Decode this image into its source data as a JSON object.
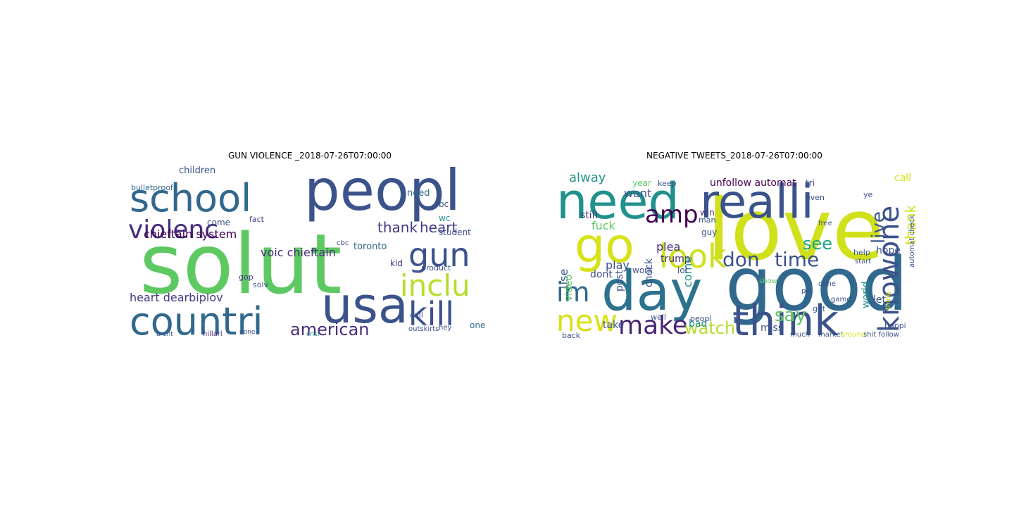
{
  "figure": {
    "left_title": "GUN VIOLENCE _2018-07-26T07:00:00",
    "right_title": "NEGATIVE TWEETS_2018-07-26T07:00:00"
  },
  "left_words": [
    {
      "t": "solut",
      "c": "#5ec962"
    },
    {
      "t": "peopl",
      "c": "#3b528b"
    },
    {
      "t": "school",
      "c": "#31688e"
    },
    {
      "t": "countri",
      "c": "#31688e"
    },
    {
      "t": "usa",
      "c": "#3b528b"
    },
    {
      "t": "violenc",
      "c": "#472d7b"
    },
    {
      "t": "gun",
      "c": "#3b528b"
    },
    {
      "t": "inclu",
      "c": "#b5de2b"
    },
    {
      "t": "kill",
      "c": "#3b528b"
    },
    {
      "t": "american",
      "c": "#472d7b"
    },
    {
      "t": "thank",
      "c": "#443983"
    },
    {
      "t": "heart",
      "c": "#443983"
    },
    {
      "t": "chieftain system",
      "c": "#440154"
    },
    {
      "t": "voic chieftain",
      "c": "#472d7b"
    },
    {
      "t": "heart dearbiplov",
      "c": "#443983"
    },
    {
      "t": "toronto",
      "c": "#31688e"
    },
    {
      "t": "student",
      "c": "#3b528b"
    },
    {
      "t": "children",
      "c": "#3b528b"
    },
    {
      "t": "bulletproof",
      "c": "#31688e"
    },
    {
      "t": "fact",
      "c": "#443983"
    },
    {
      "t": "need",
      "c": "#31688e"
    },
    {
      "t": "wc",
      "c": "#21918c"
    },
    {
      "t": "bc",
      "c": "#3b528b"
    },
    {
      "t": "come",
      "c": "#3b528b"
    },
    {
      "t": "hillari",
      "c": "#472d7b"
    },
    {
      "t": "call",
      "c": "#3b528b"
    },
    {
      "t": "outskirts",
      "c": "#3b528b"
    },
    {
      "t": "one",
      "c": "#31688e"
    },
    {
      "t": "kid",
      "c": "#472d7b"
    },
    {
      "t": "cbc",
      "c": "#3b528b"
    },
    {
      "t": "solv",
      "c": "#3b528b"
    },
    {
      "t": "gop",
      "c": "#443983"
    },
    {
      "t": "product",
      "c": "#3b528b"
    },
    {
      "t": "hey",
      "c": "#3b528b"
    },
    {
      "t": "done",
      "c": "#3b528b"
    },
    {
      "t": "arent",
      "c": "#3b528b"
    },
    {
      "t": "crisi",
      "c": "#21918c"
    }
  ],
  "right_words": [
    {
      "t": "love",
      "c": "#d0e11c"
    },
    {
      "t": "good",
      "c": "#31688e"
    },
    {
      "t": "day",
      "c": "#2c728e"
    },
    {
      "t": "need",
      "c": "#21918c"
    },
    {
      "t": "realli",
      "c": "#3b528b"
    },
    {
      "t": "go",
      "c": "#d8e219"
    },
    {
      "t": "think",
      "c": "#3b528b"
    },
    {
      "t": "knowone",
      "c": "#3b528b"
    },
    {
      "t": "look",
      "c": "#cde11d"
    },
    {
      "t": "amp",
      "c": "#440154"
    },
    {
      "t": "new",
      "c": "#d8e219"
    },
    {
      "t": "im",
      "c": "#31688e"
    },
    {
      "t": "make",
      "c": "#482475"
    },
    {
      "t": "don",
      "c": "#3b528b"
    },
    {
      "t": "time",
      "c": "#3b528b"
    },
    {
      "t": "see",
      "c": "#20a486"
    },
    {
      "t": "say",
      "c": "#5ec962"
    },
    {
      "t": "watch",
      "c": "#b5de2b"
    },
    {
      "t": "thank",
      "c": "#d0e11c"
    },
    {
      "t": "live",
      "c": "#3b528b"
    },
    {
      "t": "alway",
      "c": "#21918c"
    },
    {
      "t": "want",
      "c": "#3b528b"
    },
    {
      "t": "plea",
      "c": "#472d7b"
    },
    {
      "t": "use",
      "c": "#3b528b"
    },
    {
      "t": "unfollow automat",
      "c": "#440154"
    },
    {
      "t": "trump",
      "c": "#472d7b"
    },
    {
      "t": "play",
      "c": "#3b528b"
    },
    {
      "t": "fuck",
      "c": "#5ec962"
    },
    {
      "t": "still",
      "c": "#443983"
    },
    {
      "t": "call",
      "c": "#d8e219"
    },
    {
      "t": "take",
      "c": "#3b528b"
    },
    {
      "t": "bad",
      "c": "#21918c"
    },
    {
      "t": "dont",
      "c": "#3b528b"
    },
    {
      "t": "video",
      "c": "#5ec962"
    },
    {
      "t": "miss",
      "c": "#3b528b"
    },
    {
      "t": "come",
      "c": "#21918c"
    },
    {
      "t": "let",
      "c": "#3b528b"
    },
    {
      "t": "world",
      "c": "#21918c"
    },
    {
      "t": "hope",
      "c": "#3b528b"
    },
    {
      "t": "check",
      "c": "#3b528b"
    },
    {
      "t": "post",
      "c": "#3b528b"
    },
    {
      "t": "lol",
      "c": "#3b528b"
    },
    {
      "t": "work",
      "c": "#3b528b"
    },
    {
      "t": "win",
      "c": "#472d7b"
    },
    {
      "t": "back",
      "c": "#3b528b"
    },
    {
      "t": "happi",
      "c": "#3b528b"
    },
    {
      "t": "market",
      "c": "#3b528b"
    },
    {
      "t": "much",
      "c": "#3b528b"
    },
    {
      "t": "around",
      "c": "#d8e219"
    },
    {
      "t": "shit follow",
      "c": "#3b528b"
    },
    {
      "t": "peopl",
      "c": "#3b528b"
    },
    {
      "t": "help",
      "c": "#3b528b"
    },
    {
      "t": "got",
      "c": "#3b528b"
    },
    {
      "t": "well",
      "c": "#3b528b"
    },
    {
      "t": "keep",
      "c": "#3b528b"
    },
    {
      "t": "year",
      "c": "#5ec962"
    },
    {
      "t": "guy",
      "c": "#3b528b"
    },
    {
      "t": "man",
      "c": "#3b528b"
    },
    {
      "t": "tri",
      "c": "#3b528b"
    },
    {
      "t": "ye",
      "c": "#3b528b"
    },
    {
      "t": "start",
      "c": "#3b528b"
    },
    {
      "t": "game",
      "c": "#3b528b"
    },
    {
      "t": "even",
      "c": "#3b528b"
    },
    {
      "t": "done",
      "c": "#3b528b"
    },
    {
      "t": "free",
      "c": "#3b528b"
    },
    {
      "t": "put",
      "c": "#3b528b"
    },
    {
      "t": "show",
      "c": "#5ec962"
    },
    {
      "t": "thing",
      "c": "#cde11d"
    },
    {
      "t": "automat check",
      "c": "#3b528b"
    },
    {
      "t": "tonight",
      "c": "#d8e219"
    }
  ]
}
